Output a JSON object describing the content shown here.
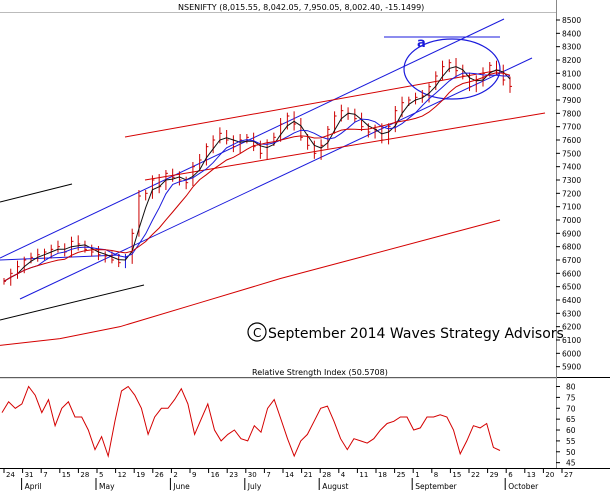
{
  "price_panel": {
    "header": "NSENIFTY (8,015.55, 8,042.05, 7,950.05, 8,002.40, -15.1499)",
    "watermark": "September 2014 Waves Strategy Advisors",
    "wave_label": "a",
    "copyright_symbol": "C"
  },
  "rsi_panel": {
    "header": "Relative Strength Index (50.5708)"
  },
  "colors": {
    "price_bars": "#cc0000",
    "channel_lines": "#1a1adc",
    "red_trend": "#d40000",
    "black_trend": "#000000",
    "ellipse": "#1a1adc",
    "ma_dark": "#111111",
    "ma_blue": "#1a1adc",
    "ma_red": "#cc0000",
    "rsi_line": "#d40000"
  },
  "chart_data": [
    {
      "type": "line",
      "title": "NSENIFTY (8,015.55, 8,042.05, 7,950.05, 8,002.40, -15.1499)",
      "yticks": [
        5900,
        6000,
        6100,
        6200,
        6300,
        6400,
        6500,
        6600,
        6700,
        6800,
        6900,
        7000,
        7100,
        7200,
        7300,
        7400,
        7500,
        7600,
        7700,
        7800,
        7900,
        8000,
        8100,
        8200,
        8300,
        8400,
        8500
      ],
      "ylim": [
        5830,
        8560
      ],
      "last_close": 8002.4,
      "x_day_labels": [
        "24",
        "31",
        "7",
        "15",
        "28",
        "5",
        "12",
        "19",
        "26",
        "2",
        "9",
        "16",
        "23",
        "30",
        "7",
        "14",
        "21",
        "28",
        "4",
        "11",
        "18",
        "25",
        "1",
        "8",
        "15",
        "22",
        "29",
        "6",
        "13",
        "20",
        "27"
      ],
      "x_month_labels": [
        "April",
        "May",
        "June",
        "July",
        "August",
        "September",
        "October"
      ],
      "series": [
        {
          "values": [
            6540,
            6600,
            6650,
            6700,
            6720,
            6740,
            6760,
            6780,
            6800,
            6760,
            6840,
            6820,
            6780,
            6760,
            6740,
            6730,
            6700,
            6680,
            6720,
            6900,
            7180,
            7200,
            7300,
            7250,
            7350,
            7320,
            7300,
            7280,
            7400,
            7450,
            7550,
            7600,
            7650,
            7600,
            7550,
            7600,
            7620,
            7550,
            7500,
            7580,
            7620,
            7720,
            7780,
            7720,
            7620,
            7560,
            7500,
            7560,
            7680,
            7780,
            7820,
            7800,
            7760,
            7700,
            7660,
            7680,
            7600,
            7700,
            7820,
            7880,
            7900,
            7920,
            7930,
            8000,
            8080,
            8150,
            8180,
            8120,
            8080,
            8000,
            8050,
            8100,
            8160,
            8120,
            8050,
            8002
          ]
        }
      ]
    },
    {
      "type": "line",
      "title": "Relative Strength Index (50.5708)",
      "yticks": [
        45,
        50,
        55,
        60,
        65,
        70,
        75,
        80
      ],
      "ylim": [
        43,
        83
      ],
      "last_value": 50.5708,
      "series": [
        {
          "values": [
            68,
            73,
            70,
            72,
            80,
            76,
            68,
            74,
            62,
            70,
            73,
            66,
            66,
            60,
            51,
            57,
            48,
            64,
            78,
            80,
            76,
            70,
            58,
            66,
            70,
            70,
            74,
            79,
            72,
            58,
            65,
            72,
            60,
            55,
            58,
            60,
            56,
            55,
            62,
            59,
            70,
            74,
            65,
            56,
            48,
            55,
            58,
            64,
            70,
            71,
            64,
            56,
            51,
            56,
            55,
            54,
            56,
            60,
            63,
            64,
            66,
            66,
            60,
            61,
            66,
            66,
            67,
            66,
            60,
            49,
            55,
            62,
            61,
            63,
            52,
            50.57
          ]
        }
      ]
    }
  ]
}
